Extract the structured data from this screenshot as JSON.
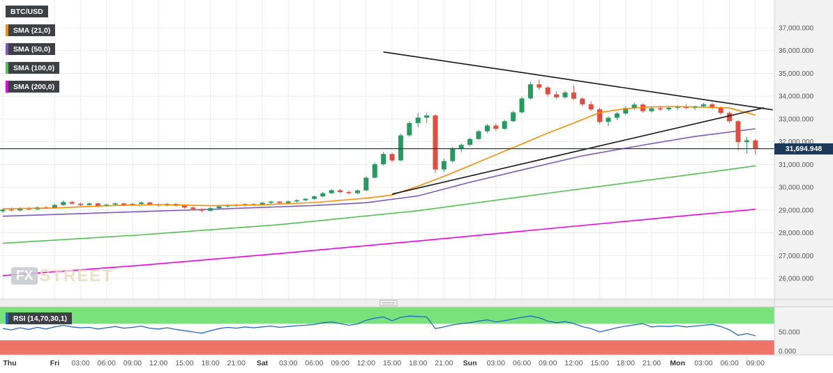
{
  "header": {
    "symbol": "BTC/USD"
  },
  "watermark": {
    "fx": "FX",
    "street": "STREET"
  },
  "colors": {
    "candle_up": "#279a5f",
    "candle_down": "#df4f3e",
    "price_line": "#1e3a5a",
    "trend_line": "#161616",
    "rsi_line": "#2266cc",
    "rsi_overbought_band": "#79e27a",
    "rsi_oversold_band": "#ee7468",
    "badge_bg": "#3d4045",
    "axis_bg": "#f2f2f2"
  },
  "chart_data": {
    "type": "candlestick",
    "symbol": "BTC/USD",
    "timeframe_hours": 1,
    "legend": [
      "BTC/USD",
      "SMA (21,0)",
      "SMA (50,0)",
      "SMA (100,0)",
      "SMA (200,0)",
      "RSI (14,70,30,1)"
    ],
    "ylim": [
      26000,
      37000
    ],
    "grid": true,
    "y_ticks": [
      {
        "value": 37000,
        "text": "37,000.000"
      },
      {
        "value": 36000,
        "text": "36,000.000"
      },
      {
        "value": 35000,
        "text": "35,000.000"
      },
      {
        "value": 34000,
        "text": "34,000.000"
      },
      {
        "value": 33000,
        "text": "33,000.000"
      },
      {
        "value": 32000,
        "text": "32,000.000"
      },
      {
        "value": 31000,
        "text": "31,000.000"
      },
      {
        "value": 30000,
        "text": "30,000.000"
      },
      {
        "value": 29000,
        "text": "29,000.000"
      },
      {
        "value": 28000,
        "text": "28,000.000"
      },
      {
        "value": 27000,
        "text": "27,000.000"
      },
      {
        "value": 26000,
        "text": "26,000.000"
      }
    ],
    "x_ticks": [
      {
        "i": 0,
        "text": "Thu",
        "day": true
      },
      {
        "i": 6,
        "text": "Fri",
        "day": true
      },
      {
        "i": 9,
        "text": "03:00"
      },
      {
        "i": 12,
        "text": "06:00"
      },
      {
        "i": 15,
        "text": "09:00"
      },
      {
        "i": 18,
        "text": "12:00"
      },
      {
        "i": 21,
        "text": "15:00"
      },
      {
        "i": 24,
        "text": "18:00"
      },
      {
        "i": 27,
        "text": "21:00"
      },
      {
        "i": 30,
        "text": "Sat",
        "day": true
      },
      {
        "i": 33,
        "text": "03:00"
      },
      {
        "i": 36,
        "text": "06:00"
      },
      {
        "i": 39,
        "text": "09:00"
      },
      {
        "i": 42,
        "text": "12:00"
      },
      {
        "i": 45,
        "text": "15:00"
      },
      {
        "i": 48,
        "text": "18:00"
      },
      {
        "i": 51,
        "text": "21:00"
      },
      {
        "i": 54,
        "text": "Sun",
        "day": true
      },
      {
        "i": 57,
        "text": "03:00"
      },
      {
        "i": 60,
        "text": "06:00"
      },
      {
        "i": 63,
        "text": "09:00"
      },
      {
        "i": 66,
        "text": "12:00"
      },
      {
        "i": 69,
        "text": "15:00"
      },
      {
        "i": 72,
        "text": "18:00"
      },
      {
        "i": 75,
        "text": "21:00"
      },
      {
        "i": 78,
        "text": "Mon",
        "day": true
      },
      {
        "i": 81,
        "text": "03:00"
      },
      {
        "i": 84,
        "text": "06:00"
      },
      {
        "i": 87,
        "text": "09:00"
      }
    ],
    "candles": [
      [
        28950,
        29080,
        28870,
        29020
      ],
      [
        29020,
        29100,
        28950,
        28980
      ],
      [
        28980,
        29120,
        28940,
        29080
      ],
      [
        29080,
        29130,
        28990,
        29030
      ],
      [
        29030,
        29160,
        29000,
        29120
      ],
      [
        29120,
        29180,
        29040,
        29070
      ],
      [
        29070,
        29260,
        29050,
        29220
      ],
      [
        29220,
        29430,
        29180,
        29350
      ],
      [
        29350,
        29410,
        29240,
        29280
      ],
      [
        29280,
        29340,
        29180,
        29220
      ],
      [
        29220,
        29330,
        29190,
        29290
      ],
      [
        29290,
        29320,
        29130,
        29170
      ],
      [
        29170,
        29280,
        29140,
        29240
      ],
      [
        29240,
        29330,
        29200,
        29290
      ],
      [
        29290,
        29320,
        29170,
        29210
      ],
      [
        29210,
        29310,
        29180,
        29270
      ],
      [
        29270,
        29380,
        29240,
        29330
      ],
      [
        29330,
        29360,
        29210,
        29250
      ],
      [
        29250,
        29300,
        29150,
        29200
      ],
      [
        29200,
        29310,
        29170,
        29270
      ],
      [
        29270,
        29300,
        29150,
        29190
      ],
      [
        29190,
        29240,
        29060,
        29110
      ],
      [
        29110,
        29160,
        28980,
        29040
      ],
      [
        29040,
        29100,
        28890,
        28970
      ],
      [
        28970,
        29120,
        28930,
        29080
      ],
      [
        29080,
        29200,
        29040,
        29160
      ],
      [
        29160,
        29260,
        29120,
        29220
      ],
      [
        29220,
        29270,
        29140,
        29200
      ],
      [
        29200,
        29300,
        29160,
        29260
      ],
      [
        29260,
        29310,
        29190,
        29250
      ],
      [
        29250,
        29360,
        29210,
        29320
      ],
      [
        29320,
        29410,
        29270,
        29370
      ],
      [
        29370,
        29400,
        29260,
        29310
      ],
      [
        29310,
        29420,
        29280,
        29380
      ],
      [
        29380,
        29470,
        29330,
        29430
      ],
      [
        29430,
        29540,
        29390,
        29490
      ],
      [
        29490,
        29640,
        29450,
        29600
      ],
      [
        29600,
        29790,
        29560,
        29740
      ],
      [
        29740,
        29920,
        29700,
        29870
      ],
      [
        29870,
        29930,
        29740,
        29790
      ],
      [
        29790,
        29850,
        29680,
        29740
      ],
      [
        29740,
        29890,
        29700,
        29860
      ],
      [
        29860,
        30480,
        29840,
        30420
      ],
      [
        30420,
        31080,
        30380,
        31010
      ],
      [
        31010,
        31550,
        30960,
        31460
      ],
      [
        31460,
        31520,
        31090,
        31180
      ],
      [
        31180,
        32350,
        31150,
        32280
      ],
      [
        32280,
        32900,
        32220,
        32820
      ],
      [
        32820,
        33270,
        32640,
        33060
      ],
      [
        33060,
        33280,
        32820,
        33150
      ],
      [
        33150,
        33210,
        30620,
        30780
      ],
      [
        30780,
        31260,
        30680,
        31150
      ],
      [
        31150,
        31780,
        31090,
        31690
      ],
      [
        31690,
        31920,
        31540,
        31860
      ],
      [
        31860,
        32180,
        31790,
        32120
      ],
      [
        32120,
        32520,
        32060,
        32460
      ],
      [
        32460,
        32780,
        32390,
        32710
      ],
      [
        32710,
        32790,
        32480,
        32570
      ],
      [
        32570,
        32960,
        32520,
        32900
      ],
      [
        32900,
        33360,
        32860,
        33290
      ],
      [
        33290,
        33980,
        33240,
        33900
      ],
      [
        33900,
        34640,
        33860,
        34520
      ],
      [
        34520,
        34730,
        34280,
        34380
      ],
      [
        34380,
        34450,
        33980,
        34080
      ],
      [
        34080,
        34220,
        33870,
        33950
      ],
      [
        33950,
        34240,
        33890,
        34160
      ],
      [
        34160,
        34470,
        33820,
        33890
      ],
      [
        33890,
        33960,
        33560,
        33640
      ],
      [
        33640,
        33780,
        33350,
        33420
      ],
      [
        33420,
        33490,
        32780,
        32870
      ],
      [
        32870,
        33120,
        32680,
        33050
      ],
      [
        33050,
        33310,
        32960,
        33240
      ],
      [
        33240,
        33560,
        33180,
        33480
      ],
      [
        33480,
        33720,
        33400,
        33630
      ],
      [
        33630,
        33680,
        33270,
        33340
      ],
      [
        33340,
        33540,
        33280,
        33470
      ],
      [
        33470,
        33580,
        33360,
        33420
      ],
      [
        33420,
        33550,
        33340,
        33490
      ],
      [
        33490,
        33600,
        33390,
        33540
      ],
      [
        33540,
        33650,
        33430,
        33480
      ],
      [
        33480,
        33590,
        33380,
        33560
      ],
      [
        33560,
        33700,
        33480,
        33640
      ],
      [
        33640,
        33720,
        33440,
        33500
      ],
      [
        33500,
        33560,
        33190,
        33260
      ],
      [
        33260,
        33330,
        32820,
        32900
      ],
      [
        32900,
        32960,
        31620,
        31980
      ],
      [
        31980,
        32210,
        31480,
        32060
      ],
      [
        32060,
        32120,
        31440,
        31694.948
      ]
    ],
    "sma": {
      "sma21": {
        "label": "SMA (21,0)",
        "color": "#ff8a00",
        "points": [
          [
            0,
            29060
          ],
          [
            6,
            29090
          ],
          [
            12,
            29190
          ],
          [
            18,
            29240
          ],
          [
            24,
            29190
          ],
          [
            30,
            29230
          ],
          [
            36,
            29330
          ],
          [
            42,
            29520
          ],
          [
            45,
            29660
          ],
          [
            48,
            30050
          ],
          [
            51,
            30480
          ],
          [
            54,
            30950
          ],
          [
            57,
            31430
          ],
          [
            60,
            31900
          ],
          [
            63,
            32380
          ],
          [
            66,
            32820
          ],
          [
            69,
            33280
          ],
          [
            72,
            33450
          ],
          [
            75,
            33530
          ],
          [
            78,
            33540
          ],
          [
            81,
            33520
          ],
          [
            84,
            33480
          ],
          [
            87,
            33170
          ]
        ]
      },
      "sma50": {
        "label": "SMA (50,0)",
        "color": "#7e57c2",
        "points": [
          [
            0,
            28730
          ],
          [
            12,
            28880
          ],
          [
            24,
            29030
          ],
          [
            36,
            29200
          ],
          [
            42,
            29320
          ],
          [
            48,
            29620
          ],
          [
            54,
            30220
          ],
          [
            61,
            30850
          ],
          [
            67,
            31380
          ],
          [
            74,
            31850
          ],
          [
            80,
            32230
          ],
          [
            87,
            32570
          ]
        ]
      },
      "sma100": {
        "label": "SMA (100,0)",
        "color": "#4fc24f",
        "points": [
          [
            0,
            27540
          ],
          [
            16,
            27910
          ],
          [
            32,
            28360
          ],
          [
            48,
            28970
          ],
          [
            64,
            29790
          ],
          [
            80,
            30580
          ],
          [
            87,
            30940
          ]
        ]
      },
      "sma200": {
        "label": "SMA (200,0)",
        "color": "#ee00ee",
        "points": [
          [
            0,
            26120
          ],
          [
            16,
            26575
          ],
          [
            32,
            27090
          ],
          [
            48,
            27640
          ],
          [
            64,
            28215
          ],
          [
            80,
            28790
          ],
          [
            87,
            29030
          ]
        ]
      }
    },
    "trendlines": [
      {
        "name": "descending",
        "from": [
          44,
          35940
        ],
        "to": [
          89,
          33400
        ]
      },
      {
        "name": "ascending",
        "from": [
          45,
          29700
        ],
        "to": [
          88,
          33490
        ]
      }
    ],
    "price_line": {
      "value": 31694.948,
      "label": "31,694.948"
    },
    "rsi": {
      "label": "RSI (14,70,30,1)",
      "levels": {
        "overbought": 70,
        "mid": 50,
        "oversold": 30
      },
      "y_tick_labels": [
        {
          "value": 50,
          "text": "50.000"
        },
        {
          "value": 0,
          "text": "0.000"
        }
      ],
      "values": [
        58,
        55,
        60,
        56,
        61,
        57,
        62,
        66,
        62,
        60,
        61,
        57,
        60,
        63,
        59,
        61,
        64,
        59,
        57,
        60,
        56,
        53,
        50,
        47,
        53,
        58,
        61,
        59,
        62,
        60,
        62,
        64,
        61,
        63,
        65,
        66,
        68,
        72,
        74,
        70,
        66,
        69,
        78,
        83,
        86,
        77,
        85,
        88,
        87,
        86,
        58,
        62,
        67,
        70,
        72,
        76,
        79,
        74,
        77,
        81,
        85,
        88,
        84,
        76,
        72,
        75,
        70,
        63,
        58,
        50,
        55,
        60,
        64,
        67,
        70,
        62,
        64,
        63,
        65,
        62,
        64,
        66,
        68,
        63,
        55,
        42,
        46,
        41
      ]
    }
  }
}
